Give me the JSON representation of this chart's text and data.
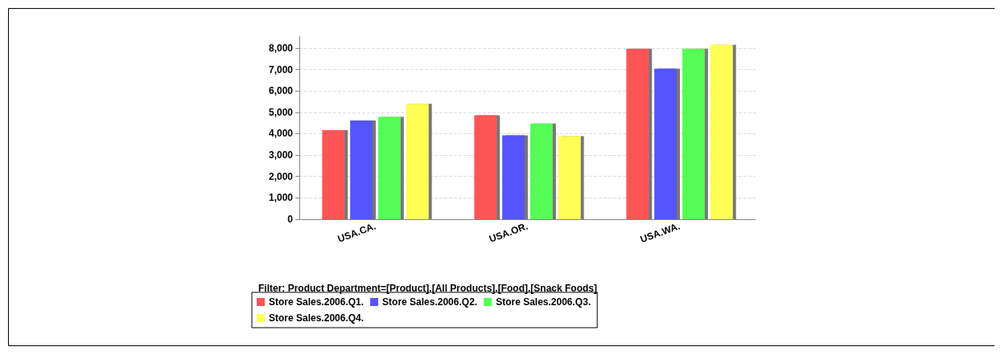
{
  "chart_data": {
    "type": "bar",
    "categories": [
      "USA.CA.",
      "USA.OR.",
      "USA.WA."
    ],
    "series": [
      {
        "name": "Store Sales.2006.Q1.",
        "color": "#ff5555",
        "values": [
          4170,
          4860,
          7970
        ]
      },
      {
        "name": "Store Sales.2006.Q2.",
        "color": "#5555ff",
        "values": [
          4620,
          3920,
          7040
        ]
      },
      {
        "name": "Store Sales.2006.Q3.",
        "color": "#55ff55",
        "values": [
          4790,
          4480,
          7970
        ]
      },
      {
        "name": "Store Sales.2006.Q4.",
        "color": "#ffff55",
        "values": [
          5400,
          3890,
          8160
        ]
      }
    ],
    "ylim": [
      0,
      8560
    ],
    "yticks": [
      0,
      {
        "value": 1000,
        "label": "1,000"
      },
      {
        "value": 2000,
        "label": "2,000"
      },
      {
        "value": 3000,
        "label": "3,000"
      },
      {
        "value": 4000,
        "label": "4,000"
      },
      {
        "value": 5000,
        "label": "5,000"
      },
      {
        "value": 6000,
        "label": "6,000"
      },
      {
        "value": 7000,
        "label": "7,000"
      },
      {
        "value": 8000,
        "label": "8,000"
      }
    ],
    "annotations": [
      "Filter: Product Department=[Product].[All Products].[Food].[Snack Foods]"
    ],
    "grid": "y",
    "legend": "bottom"
  }
}
